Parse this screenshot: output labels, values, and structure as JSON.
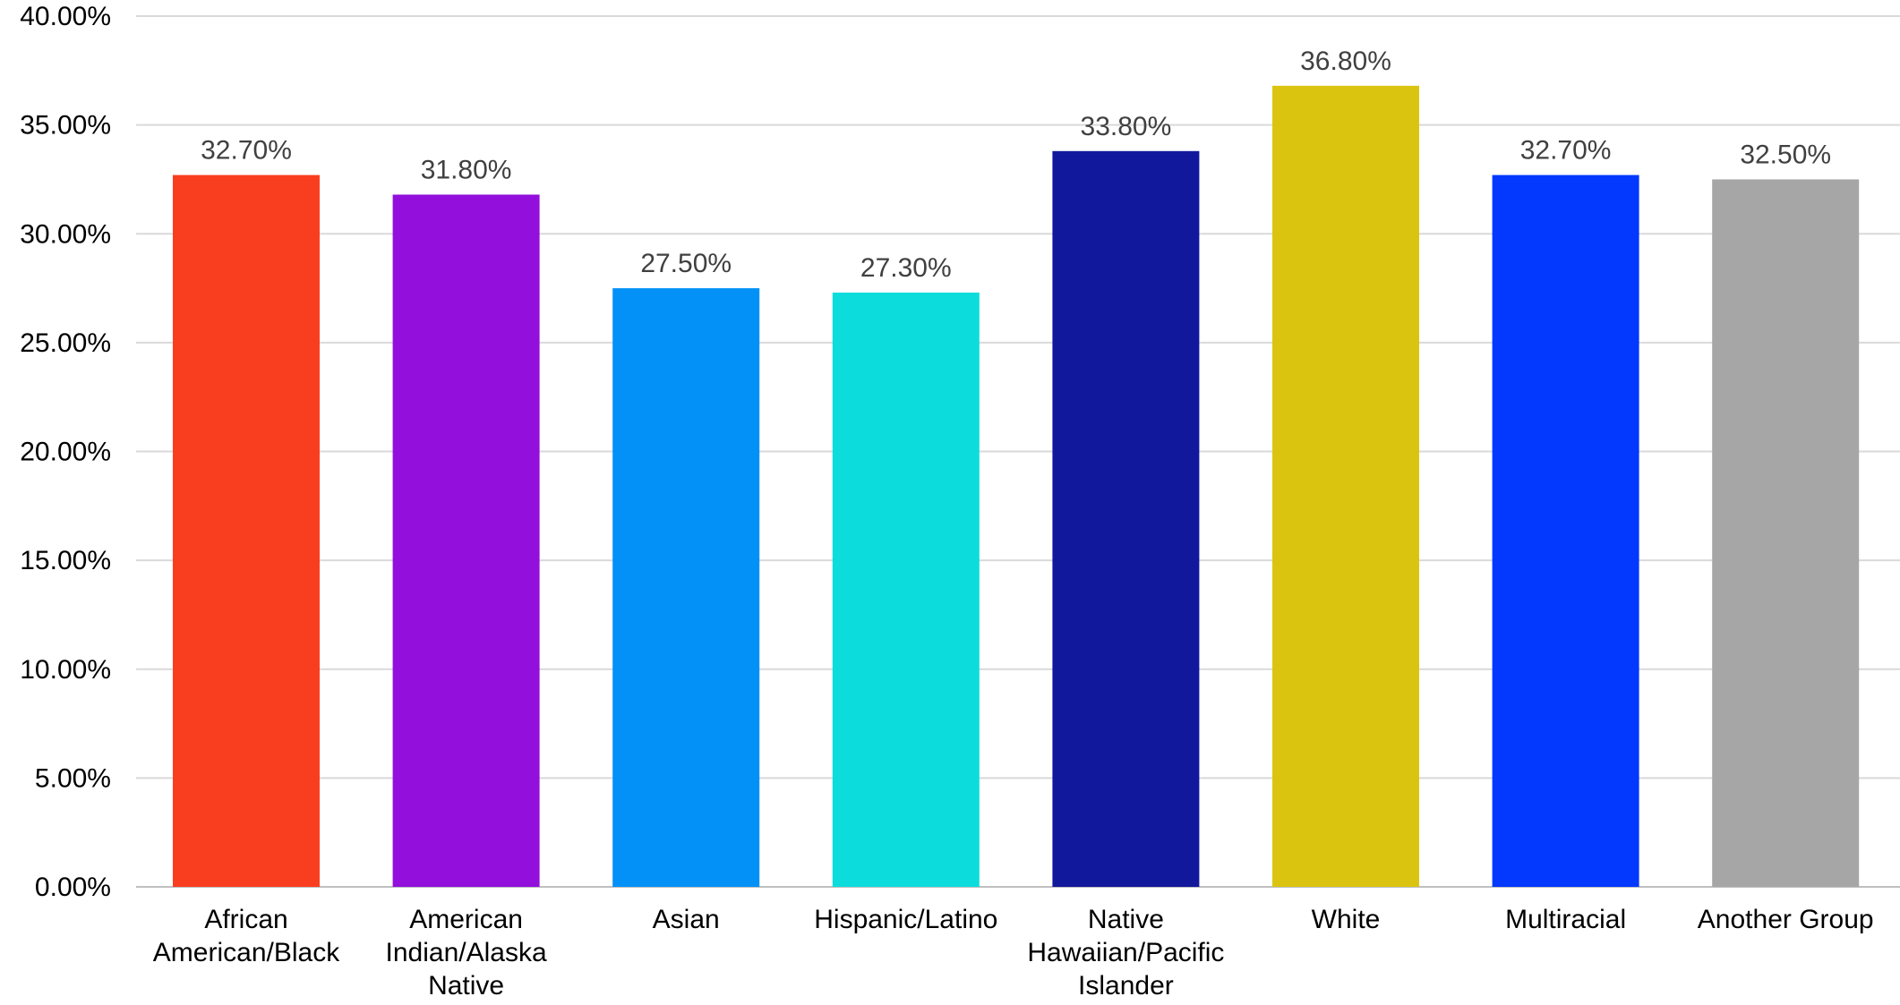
{
  "chart_data": {
    "type": "bar",
    "title": "",
    "xlabel": "",
    "ylabel": "",
    "categories": [
      [
        "African",
        "American/Black"
      ],
      [
        "American",
        "Indian/Alaska",
        "Native"
      ],
      [
        "Asian"
      ],
      [
        "Hispanic/Latino"
      ],
      [
        "Native",
        "Hawaiian/Pacific",
        "Islander"
      ],
      [
        "White"
      ],
      [
        "Multiracial"
      ],
      [
        "Another Group"
      ]
    ],
    "values": [
      32.7,
      31.8,
      27.5,
      27.3,
      33.8,
      36.8,
      32.7,
      32.5
    ],
    "value_labels": [
      "32.70%",
      "31.80%",
      "27.50%",
      "27.30%",
      "33.80%",
      "36.80%",
      "32.70%",
      "32.50%"
    ],
    "colors": [
      "#f93e20",
      "#930fdc",
      "#0391f8",
      "#0ddcdc",
      "#12189c",
      "#dbc410",
      "#0338ff",
      "#a6a6a6"
    ],
    "ylim": [
      0,
      40
    ],
    "yticks": [
      0,
      5,
      10,
      15,
      20,
      25,
      30,
      35,
      40
    ],
    "ytick_labels": [
      "0.00%",
      "5.00%",
      "10.00%",
      "15.00%",
      "20.00%",
      "25.00%",
      "30.00%",
      "35.00%",
      "40.00%"
    ],
    "grid": true,
    "legend": "none"
  }
}
